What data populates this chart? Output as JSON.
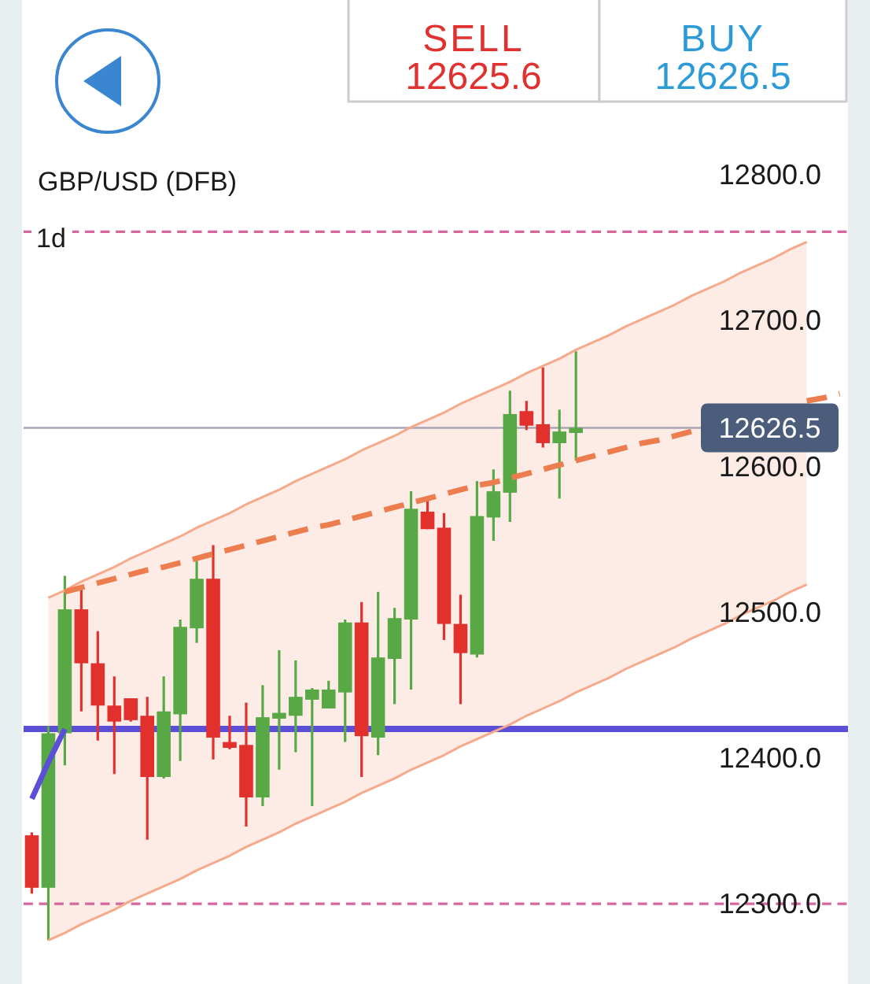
{
  "chart_data": {
    "type": "candlestick",
    "title": "GBP/USD (DFB)",
    "categories": [
      null,
      null,
      null,
      null,
      null,
      null,
      null,
      null,
      null,
      null,
      null,
      null,
      null,
      null,
      null,
      null,
      null,
      null,
      null,
      null,
      null,
      null,
      null,
      null,
      null,
      null,
      null,
      null,
      null,
      null,
      null,
      null,
      null,
      null,
      null,
      null,
      null,
      null,
      null,
      null,
      null,
      null,
      null,
      null,
      null,
      null,
      null,
      null,
      null,
      null
    ],
    "ohlc": [
      [
        12347,
        12349,
        12307,
        12311
      ],
      [
        12311,
        12422,
        12275,
        12417
      ],
      [
        12417,
        12525,
        12395,
        12502
      ],
      [
        12502,
        12516,
        12432,
        12465
      ],
      [
        12465,
        12487,
        12412,
        12436
      ],
      [
        12436,
        12456,
        12389,
        12425
      ],
      [
        12441,
        12441,
        12425,
        12426
      ],
      [
        12429,
        12442,
        12344,
        12387
      ],
      [
        12387,
        12456,
        12386,
        12432
      ],
      [
        12430,
        12495,
        12398,
        12490
      ],
      [
        12489,
        12535,
        12479,
        12523
      ],
      [
        12523,
        12546,
        12399,
        12414
      ],
      [
        12411,
        12429,
        12406,
        12407
      ],
      [
        12409,
        12438,
        12353,
        12373
      ],
      [
        12373,
        12450,
        12367,
        12428
      ],
      [
        12427,
        12474,
        12392,
        12431
      ],
      [
        12429,
        12467,
        12404,
        12442
      ],
      [
        12440,
        12448,
        12367,
        12447
      ],
      [
        12434,
        12453,
        12434,
        12447
      ],
      [
        12445,
        12495,
        12411,
        12493
      ],
      [
        12493,
        12507,
        12387,
        12415
      ],
      [
        12414,
        12514,
        12402,
        12469
      ],
      [
        12468,
        12503,
        12437,
        12496
      ],
      [
        12495,
        12583,
        12447,
        12571
      ],
      [
        12569,
        12578,
        12557,
        12557
      ],
      [
        12558,
        12568,
        12481,
        12492
      ],
      [
        12492,
        12512,
        12437,
        12472
      ],
      [
        12471,
        12590,
        12469,
        12566
      ],
      [
        12565,
        12598,
        12549,
        12583
      ],
      [
        12582,
        12652,
        12562,
        12636
      ],
      [
        12638,
        12645,
        12625,
        12628
      ],
      [
        12629,
        12668,
        12613,
        12616
      ],
      [
        12616,
        12639,
        12578,
        12624
      ],
      [
        12623,
        12679,
        12604,
        12626.5
      ],
      null,
      null,
      null,
      null,
      null,
      null,
      null,
      null,
      null,
      null,
      null,
      null,
      null,
      null,
      null,
      null
    ],
    "colors": [
      "#e2302c",
      "#58a845",
      "#58a845",
      "#e2302c",
      "#e2302c",
      "#e2302c",
      "#e2302c",
      "#e2302c",
      "#58a845",
      "#58a845",
      "#58a845",
      "#e2302c",
      "#e2302c",
      "#e2302c",
      "#58a845",
      "#58a845",
      "#58a845",
      "#58a845",
      "#58a845",
      "#58a845",
      "#e2302c",
      "#58a845",
      "#58a845",
      "#58a845",
      "#e2302c",
      "#e2302c",
      "#e2302c",
      "#58a845",
      "#58a845",
      "#58a845",
      "#e2302c",
      "#e2302c",
      "#58a845",
      "#58a845",
      null,
      null,
      null,
      null,
      null,
      null,
      null,
      null,
      null,
      null,
      null,
      null,
      null,
      null,
      null,
      null
    ],
    "series": [
      {
        "type": "line",
        "color": "#f7a98c",
        "values": [
          null,
          12510,
          12515,
          12521,
          12526,
          12531,
          12537,
          12542,
          12547,
          12552,
          12558,
          12563,
          12568,
          12574,
          12579,
          12584,
          12590,
          12595,
          12600,
          12605,
          12611,
          12616,
          12621,
          12627,
          12632,
          12637,
          12643,
          12648,
          12653,
          12658,
          12664,
          12669,
          12674,
          12680,
          12685,
          12690,
          12696,
          12701,
          12706,
          12711,
          12717,
          12722,
          12727,
          12733,
          12738,
          12743,
          12749,
          12754,
          null,
          null
        ],
        "upper": [
          null,
          12510,
          12515,
          12521,
          12526,
          12531,
          12537,
          12542,
          12547,
          12552,
          12558,
          12563,
          12568,
          12574,
          12579,
          12584,
          12590,
          12595,
          12600,
          12605,
          12611,
          12616,
          12621,
          12627,
          12632,
          12637,
          12643,
          12648,
          12653,
          12658,
          12664,
          12669,
          12674,
          12680,
          12685,
          12690,
          12696,
          12701,
          12706,
          12711,
          12717,
          12722,
          12727,
          12733,
          12738,
          12743,
          12749,
          12754,
          null,
          null
        ],
        "lower": [
          null,
          12275,
          12280,
          12286,
          12291,
          12296,
          12302,
          12307,
          12312,
          12317,
          12323,
          12328,
          12333,
          12339,
          12344,
          12349,
          12355,
          12360,
          12365,
          12370,
          12376,
          12381,
          12386,
          12392,
          12397,
          12402,
          12408,
          12413,
          12418,
          12423,
          12429,
          12434,
          12439,
          12445,
          12450,
          12455,
          12461,
          12466,
          12471,
          12476,
          12482,
          12487,
          12492,
          12498,
          12503,
          12508,
          12514,
          12519,
          null,
          null
        ]
      },
      {
        "type": "line",
        "color": "#f7a98c",
        "values": [
          null,
          12275,
          12280,
          12286,
          12291,
          12296,
          12302,
          12307,
          12312,
          12317,
          12323,
          12328,
          12333,
          12339,
          12344,
          12349,
          12355,
          12360,
          12365,
          12370,
          12376,
          12381,
          12386,
          12392,
          12397,
          12402,
          12408,
          12413,
          12418,
          12423,
          12429,
          12434,
          12439,
          12445,
          12450,
          12455,
          12461,
          12466,
          12471,
          12476,
          12482,
          12487,
          12492,
          12498,
          12503,
          12508,
          12514,
          12519,
          null,
          null
        ]
      },
      {
        "type": "line",
        "color": "#ec7d4f",
        "line_style": "dashed",
        "values": [
          null,
          null,
          12514,
          12517,
          12520,
          12523,
          12526,
          12529,
          12531,
          12534,
          12537,
          12540,
          12543,
          12546,
          12549,
          12552,
          12555,
          12558,
          12560,
          12563,
          12566,
          12569,
          12572,
          12575,
          12578,
          12581,
          12584,
          12587,
          12589,
          12592,
          12595,
          12598,
          12601,
          12604,
          12607,
          12610,
          12613,
          12616,
          12618,
          12621,
          12624,
          null,
          null,
          null,
          null,
          null,
          null,
          12645,
          12647,
          12650
        ]
      },
      {
        "type": "line",
        "color": "#5a4fd6",
        "values": [
          12372,
          12397,
          12420,
          null,
          null,
          null,
          null,
          null,
          null,
          null,
          null,
          null,
          null,
          null,
          null,
          null,
          null,
          null,
          null,
          null,
          null,
          null,
          null,
          null,
          null,
          null,
          null,
          null,
          null,
          null,
          null,
          null,
          null,
          null,
          null,
          null,
          null,
          null,
          null,
          null,
          null,
          null,
          null,
          null,
          null,
          null,
          null,
          null,
          null,
          null
        ]
      }
    ],
    "ylim": [
      12245,
      12920
    ],
    "yticks": [
      {
        "value": 12300,
        "label": "12300.0"
      },
      {
        "value": 12400,
        "label": "12400.0"
      },
      {
        "value": 12500,
        "label": "12500.0"
      },
      {
        "value": 12600,
        "label": "12600.0"
      },
      {
        "value": 12700,
        "label": "12700.0"
      },
      {
        "value": 12800,
        "label": "12800.0"
      }
    ],
    "tick_labels": "y",
    "ref_lines": [
      {
        "axis": "y",
        "value": 12761,
        "color": "#d4679d",
        "line_style": "dashed"
      },
      {
        "axis": "y",
        "value": 12300,
        "color": "#d4679d",
        "line_style": "dashed"
      },
      {
        "axis": "y",
        "value": 12626.5,
        "label": "12626.5",
        "color": "#a8a4b4"
      },
      {
        "axis": "y",
        "value": 12420,
        "color": "#5a4fd6"
      }
    ],
    "annotations": [
      "1d",
      "SELL",
      "12625.6",
      "BUY",
      "12626.5"
    ]
  }
}
